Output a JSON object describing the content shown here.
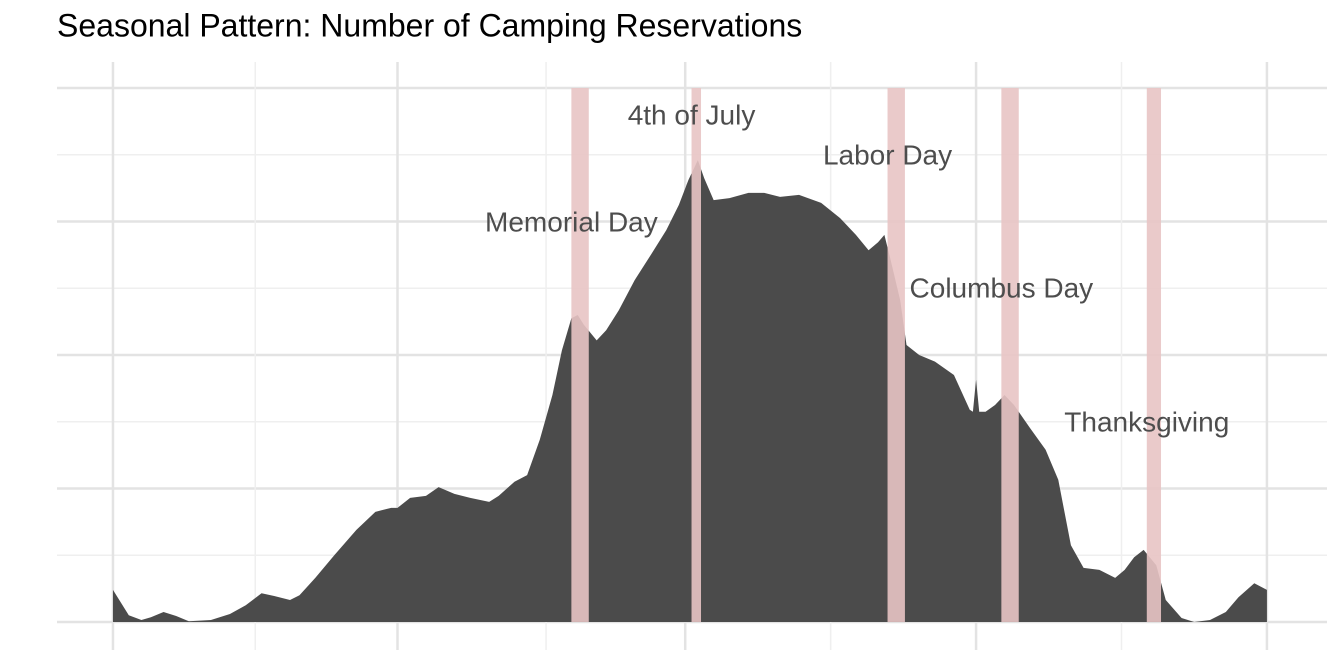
{
  "chart_data": {
    "type": "area",
    "title": "Seasonal Pattern: Number of Camping Reservations",
    "x": [
      1,
      3,
      6,
      10,
      13,
      17,
      21,
      25,
      32,
      38,
      43,
      48,
      52,
      57,
      60,
      65,
      71,
      78,
      84,
      89,
      91,
      95,
      100,
      104,
      109,
      114,
      120,
      123,
      128,
      132,
      136,
      140,
      143,
      146,
      148,
      150,
      154,
      157,
      161,
      166,
      171,
      176,
      180,
      183,
      186,
      188,
      191,
      196,
      202,
      207,
      212,
      218,
      225,
      231,
      236,
      240,
      243,
      245,
      247,
      250,
      252,
      256,
      261,
      267,
      272,
      273,
      274,
      275,
      277,
      280,
      283,
      286,
      291,
      296,
      300,
      304,
      308,
      313,
      318,
      321,
      324,
      327,
      331,
      334,
      339,
      343,
      348,
      353,
      357,
      362,
      366
    ],
    "values": [
      0.48,
      0.33,
      0.1,
      0.03,
      0.07,
      0.15,
      0.09,
      0.01,
      0.03,
      0.12,
      0.25,
      0.43,
      0.39,
      0.33,
      0.4,
      0.66,
      1.0,
      1.38,
      1.65,
      1.71,
      1.71,
      1.86,
      1.89,
      2.02,
      1.92,
      1.86,
      1.8,
      1.89,
      2.1,
      2.2,
      2.73,
      3.4,
      4.07,
      4.55,
      4.6,
      4.45,
      4.22,
      4.37,
      4.67,
      5.12,
      5.49,
      5.87,
      6.25,
      6.62,
      6.92,
      6.65,
      6.32,
      6.35,
      6.43,
      6.43,
      6.37,
      6.4,
      6.28,
      6.05,
      5.8,
      5.57,
      5.69,
      5.8,
      5.42,
      4.82,
      4.15,
      4.0,
      3.9,
      3.7,
      3.18,
      3.15,
      3.63,
      3.15,
      3.15,
      3.25,
      3.4,
      3.25,
      2.91,
      2.58,
      2.13,
      1.15,
      0.81,
      0.78,
      0.66,
      0.78,
      0.97,
      1.08,
      0.85,
      0.33,
      0.06,
      0,
      0.03,
      0.15,
      0.37,
      0.58,
      0.48
    ],
    "color": "#474747",
    "xlim": [
      -16.7,
      385
    ],
    "ylim": [
      -0.42,
      8.39
    ],
    "xticks": [
      1,
      46,
      91,
      138,
      182,
      228,
      274,
      320,
      366
    ],
    "yticks": [
      0,
      1,
      2,
      3,
      4,
      5,
      6,
      7,
      8
    ],
    "grid": true,
    "band_color": "#e8c4c4",
    "annotations": [
      {
        "label": "Memorial Day",
        "start": 146,
        "end": 151.5
      },
      {
        "label": "4th of July",
        "start": 184,
        "end": 187
      },
      {
        "label": "Labor Day",
        "start": 246,
        "end": 251.5
      },
      {
        "label": "Columbus Day",
        "start": 282,
        "end": 287.5
      },
      {
        "label": "Thanksgiving",
        "start": 328,
        "end": 332.5
      }
    ]
  }
}
